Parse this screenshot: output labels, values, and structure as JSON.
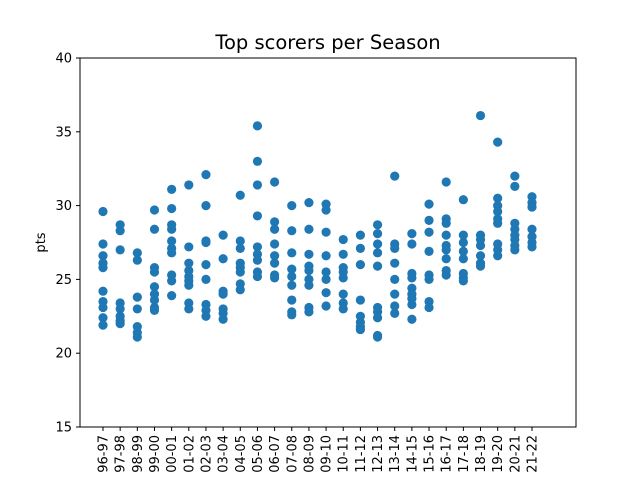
{
  "chart_data": {
    "type": "scatter",
    "title": "Top scorers per Season",
    "xlabel": "",
    "ylabel": "pts",
    "ylim": [
      15,
      40
    ],
    "yticks": [
      15,
      20,
      25,
      30,
      35,
      40
    ],
    "grid": false,
    "marker_color": "#1f77b4",
    "categories": [
      "96-97",
      "97-98",
      "98-99",
      "99-00",
      "00-01",
      "01-02",
      "02-03",
      "03-04",
      "04-05",
      "05-06",
      "06-07",
      "07-08",
      "08-09",
      "09-10",
      "10-11",
      "11-12",
      "12-13",
      "13-14",
      "14-15",
      "15-16",
      "16-17",
      "17-18",
      "18-19",
      "19-20",
      "20-21",
      "21-22"
    ],
    "points": [
      {
        "x": "96-97",
        "ys": [
          29.6,
          27.4,
          26.6,
          26.1,
          25.8,
          24.2,
          23.5,
          23.1,
          22.4,
          21.9
        ]
      },
      {
        "x": "97-98",
        "ys": [
          28.7,
          28.3,
          27.0,
          23.4,
          23.0,
          22.5,
          22.2,
          22.0
        ]
      },
      {
        "x": "98-99",
        "ys": [
          26.8,
          26.3,
          23.8,
          23.0,
          21.8,
          21.4,
          21.1
        ]
      },
      {
        "x": "99-00",
        "ys": [
          29.7,
          28.4,
          25.8,
          25.5,
          24.5,
          24.0,
          23.6,
          23.1,
          22.9
        ]
      },
      {
        "x": "00-01",
        "ys": [
          31.1,
          29.8,
          28.7,
          28.4,
          27.6,
          27.1,
          26.8,
          25.3,
          24.9,
          23.9
        ]
      },
      {
        "x": "01-02",
        "ys": [
          31.4,
          27.2,
          26.1,
          25.6,
          25.2,
          24.9,
          24.6,
          23.4,
          23.0
        ]
      },
      {
        "x": "02-03",
        "ys": [
          32.1,
          30.0,
          27.6,
          27.5,
          26.0,
          25.0,
          23.3,
          22.9,
          22.5
        ]
      },
      {
        "x": "03-04",
        "ys": [
          28.0,
          26.4,
          24.2,
          24.0,
          23.0,
          22.7,
          22.3
        ]
      },
      {
        "x": "04-05",
        "ys": [
          30.7,
          27.6,
          27.1,
          26.1,
          25.8,
          25.5,
          24.7,
          24.3
        ]
      },
      {
        "x": "05-06",
        "ys": [
          35.4,
          33.0,
          31.4,
          29.3,
          27.2,
          26.7,
          26.3,
          25.5,
          25.2
        ]
      },
      {
        "x": "06-07",
        "ys": [
          31.6,
          28.9,
          28.4,
          27.4,
          26.6,
          26.1,
          25.3,
          25.1
        ]
      },
      {
        "x": "07-08",
        "ys": [
          30.0,
          28.3,
          26.8,
          25.7,
          25.2,
          24.6,
          23.6,
          22.8,
          22.6
        ]
      },
      {
        "x": "08-09",
        "ys": [
          30.2,
          28.4,
          26.7,
          25.9,
          25.6,
          25.0,
          24.6,
          23.1,
          22.8
        ]
      },
      {
        "x": "09-10",
        "ys": [
          30.1,
          29.7,
          28.2,
          26.6,
          25.5,
          25.0,
          24.1,
          23.2
        ]
      },
      {
        "x": "10-11",
        "ys": [
          27.7,
          26.7,
          25.8,
          25.5,
          25.1,
          24.0,
          23.4,
          23.0
        ]
      },
      {
        "x": "11-12",
        "ys": [
          28.0,
          27.1,
          26.0,
          23.6,
          22.5,
          22.1,
          21.8,
          21.6
        ]
      },
      {
        "x": "12-13",
        "ys": [
          28.7,
          28.1,
          27.4,
          26.8,
          25.9,
          23.1,
          22.8,
          22.4,
          21.2,
          21.1
        ]
      },
      {
        "x": "13-14",
        "ys": [
          32.0,
          27.4,
          27.1,
          26.1,
          25.0,
          24.0,
          23.2,
          22.7
        ]
      },
      {
        "x": "14-15",
        "ys": [
          28.1,
          27.4,
          25.4,
          25.1,
          24.4,
          24.0,
          23.7,
          23.3,
          22.3
        ]
      },
      {
        "x": "15-16",
        "ys": [
          30.1,
          29.0,
          28.2,
          26.9,
          25.3,
          25.0,
          23.5,
          23.1
        ]
      },
      {
        "x": "16-17",
        "ys": [
          31.6,
          29.1,
          28.8,
          28.0,
          27.3,
          27.0,
          26.4,
          25.6,
          25.3
        ]
      },
      {
        "x": "17-18",
        "ys": [
          30.4,
          28.0,
          27.5,
          26.9,
          26.4,
          25.4,
          25.1,
          24.9
        ]
      },
      {
        "x": "18-19",
        "ys": [
          36.1,
          28.0,
          27.7,
          27.3,
          26.6,
          26.1,
          25.9
        ]
      },
      {
        "x": "19-20",
        "ys": [
          34.3,
          30.5,
          30.0,
          29.6,
          29.1,
          28.8,
          27.4,
          27.0,
          26.6
        ]
      },
      {
        "x": "20-21",
        "ys": [
          32.0,
          31.3,
          28.8,
          28.4,
          28.0,
          27.7,
          27.3,
          27.0
        ]
      },
      {
        "x": "21-22",
        "ys": [
          30.6,
          30.2,
          29.9,
          28.4,
          27.9,
          27.5,
          27.2
        ]
      }
    ]
  }
}
